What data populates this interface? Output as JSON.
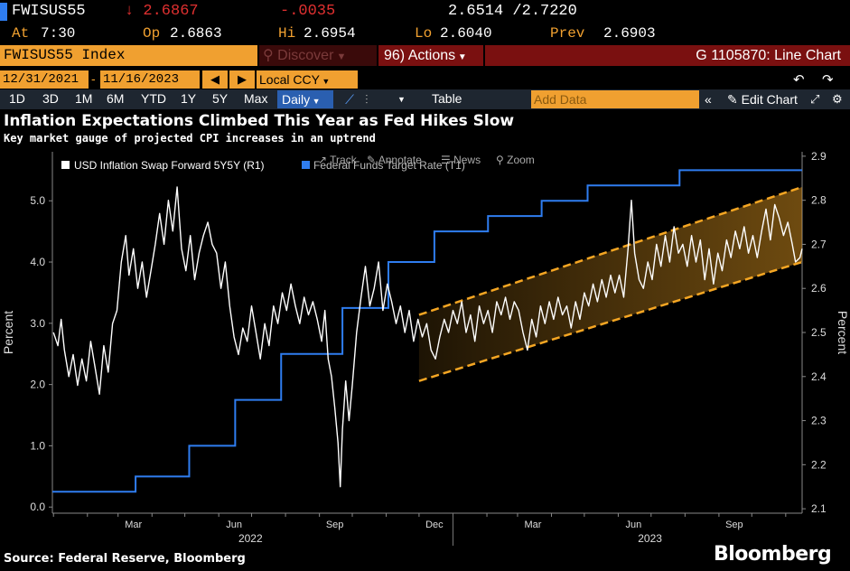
{
  "ticker": {
    "symbol": "FWISUS55",
    "last": "↓ 2.6867",
    "change": "-.0035",
    "bid_ask": "2.6514 /2.7220",
    "at_label": "At",
    "at_value": "7:30",
    "op_label": "Op",
    "op_value": "2.6863",
    "hi_label": "Hi",
    "hi_value": "2.6954",
    "lo_label": "Lo",
    "lo_value": "2.6040",
    "prev_label": "Prev",
    "prev_value": "2.6903"
  },
  "toolbar": {
    "security": "FWISUS55 Index",
    "discover": "Discover",
    "actions_num": "96)",
    "actions": "Actions",
    "function": "G 1105870: Line Chart"
  },
  "dates": {
    "start": "12/31/2021",
    "end": "11/16/2023",
    "currency": "Local CCY"
  },
  "periods": [
    "1D",
    "3D",
    "1M",
    "6M",
    "YTD",
    "1Y",
    "5Y",
    "Max"
  ],
  "frequency": "Daily",
  "table_label": "Table",
  "add_data_placeholder": "Add Data",
  "edit_chart": "Edit Chart",
  "headline": "Inflation Expectations Climbed This Year as Fed Hikes Slow",
  "subheadline": "Key market gauge of projected CPI increases in an uptrend",
  "legend_overlay": {
    "track": "Track",
    "annotate": "Annotate",
    "news": "News",
    "zoom": "Zoom"
  },
  "footer": {
    "source": "Source: Federal Reserve, Bloomberg",
    "brand": "Bloomberg"
  },
  "colors": {
    "inflation": "#ffffff",
    "fed": "#2f7df0",
    "channel": "#f5a623",
    "amber": "#f0a030",
    "down": "#e03030"
  },
  "chart_data": {
    "type": "line",
    "legend": [
      "USD Inflation Swap Forward 5Y5Y (R1)",
      "Federal Funds Target Rate (T1)"
    ],
    "left_axis": {
      "label": "Percent",
      "range": [
        -0.1,
        5.8
      ],
      "ticks": [
        0.0,
        1.0,
        2.0,
        3.0,
        4.0,
        5.0
      ]
    },
    "right_axis": {
      "label": "Percent",
      "range": [
        2.09,
        2.91
      ],
      "ticks": [
        2.1,
        2.2,
        2.3,
        2.4,
        2.5,
        2.6,
        2.7,
        2.8,
        2.9
      ]
    },
    "x_range": [
      "2021-12-31",
      "2023-11-16"
    ],
    "x_ticks": [
      "Mar",
      "Jun",
      "Sep",
      "Dec",
      "Mar",
      "Jun",
      "Sep"
    ],
    "x_tick_dates": [
      "2022-03-15",
      "2022-06-15",
      "2022-09-15",
      "2022-12-15",
      "2023-03-15",
      "2023-06-15",
      "2023-09-15"
    ],
    "x_year_labels": [
      {
        "label": "2022",
        "date": "2022-06-30"
      },
      {
        "label": "2023",
        "date": "2023-06-30"
      }
    ],
    "series": [
      {
        "name": "USD Inflation Swap Forward 5Y5Y (R1)",
        "axis": "right",
        "points": [
          [
            "2022-01-01",
            2.5
          ],
          [
            "2022-01-05",
            2.47
          ],
          [
            "2022-01-08",
            2.53
          ],
          [
            "2022-01-11",
            2.46
          ],
          [
            "2022-01-15",
            2.4
          ],
          [
            "2022-01-19",
            2.45
          ],
          [
            "2022-01-23",
            2.38
          ],
          [
            "2022-01-27",
            2.44
          ],
          [
            "2022-01-31",
            2.39
          ],
          [
            "2022-02-04",
            2.48
          ],
          [
            "2022-02-08",
            2.42
          ],
          [
            "2022-02-12",
            2.36
          ],
          [
            "2022-02-16",
            2.47
          ],
          [
            "2022-02-20",
            2.41
          ],
          [
            "2022-02-24",
            2.52
          ],
          [
            "2022-02-28",
            2.55
          ],
          [
            "2022-03-04",
            2.66
          ],
          [
            "2022-03-08",
            2.72
          ],
          [
            "2022-03-11",
            2.63
          ],
          [
            "2022-03-15",
            2.69
          ],
          [
            "2022-03-19",
            2.6
          ],
          [
            "2022-03-23",
            2.66
          ],
          [
            "2022-03-27",
            2.58
          ],
          [
            "2022-03-31",
            2.64
          ],
          [
            "2022-04-04",
            2.7
          ],
          [
            "2022-04-08",
            2.77
          ],
          [
            "2022-04-12",
            2.7
          ],
          [
            "2022-04-16",
            2.8
          ],
          [
            "2022-04-20",
            2.73
          ],
          [
            "2022-04-24",
            2.83
          ],
          [
            "2022-04-28",
            2.69
          ],
          [
            "2022-05-02",
            2.64
          ],
          [
            "2022-05-06",
            2.72
          ],
          [
            "2022-05-10",
            2.62
          ],
          [
            "2022-05-14",
            2.68
          ],
          [
            "2022-05-18",
            2.72
          ],
          [
            "2022-05-22",
            2.75
          ],
          [
            "2022-05-26",
            2.7
          ],
          [
            "2022-05-30",
            2.68
          ],
          [
            "2022-06-03",
            2.6
          ],
          [
            "2022-06-07",
            2.66
          ],
          [
            "2022-06-11",
            2.56
          ],
          [
            "2022-06-15",
            2.49
          ],
          [
            "2022-06-19",
            2.45
          ],
          [
            "2022-06-23",
            2.51
          ],
          [
            "2022-06-27",
            2.48
          ],
          [
            "2022-07-01",
            2.56
          ],
          [
            "2022-07-05",
            2.5
          ],
          [
            "2022-07-09",
            2.44
          ],
          [
            "2022-07-13",
            2.52
          ],
          [
            "2022-07-17",
            2.47
          ],
          [
            "2022-07-21",
            2.56
          ],
          [
            "2022-07-25",
            2.52
          ],
          [
            "2022-07-29",
            2.59
          ],
          [
            "2022-08-02",
            2.55
          ],
          [
            "2022-08-06",
            2.61
          ],
          [
            "2022-08-10",
            2.56
          ],
          [
            "2022-08-14",
            2.52
          ],
          [
            "2022-08-18",
            2.58
          ],
          [
            "2022-08-22",
            2.54
          ],
          [
            "2022-08-26",
            2.57
          ],
          [
            "2022-08-30",
            2.53
          ],
          [
            "2022-09-03",
            2.48
          ],
          [
            "2022-09-06",
            2.55
          ],
          [
            "2022-09-09",
            2.44
          ],
          [
            "2022-09-12",
            2.4
          ],
          [
            "2022-09-15",
            2.33
          ],
          [
            "2022-09-18",
            2.25
          ],
          [
            "2022-09-20",
            2.15
          ],
          [
            "2022-09-22",
            2.28
          ],
          [
            "2022-09-25",
            2.39
          ],
          [
            "2022-09-28",
            2.3
          ],
          [
            "2022-10-01",
            2.38
          ],
          [
            "2022-10-05",
            2.5
          ],
          [
            "2022-10-09",
            2.58
          ],
          [
            "2022-10-13",
            2.65
          ],
          [
            "2022-10-17",
            2.56
          ],
          [
            "2022-10-21",
            2.6
          ],
          [
            "2022-10-25",
            2.66
          ],
          [
            "2022-10-29",
            2.55
          ],
          [
            "2022-11-02",
            2.61
          ],
          [
            "2022-11-06",
            2.57
          ],
          [
            "2022-11-10",
            2.52
          ],
          [
            "2022-11-14",
            2.56
          ],
          [
            "2022-11-18",
            2.5
          ],
          [
            "2022-11-22",
            2.55
          ],
          [
            "2022-11-26",
            2.48
          ],
          [
            "2022-11-30",
            2.53
          ],
          [
            "2022-12-04",
            2.49
          ],
          [
            "2022-12-08",
            2.52
          ],
          [
            "2022-12-12",
            2.46
          ],
          [
            "2022-12-16",
            2.44
          ],
          [
            "2022-12-20",
            2.49
          ],
          [
            "2022-12-24",
            2.53
          ],
          [
            "2022-12-28",
            2.5
          ],
          [
            "2023-01-01",
            2.55
          ],
          [
            "2023-01-05",
            2.52
          ],
          [
            "2023-01-09",
            2.57
          ],
          [
            "2023-01-13",
            2.5
          ],
          [
            "2023-01-17",
            2.54
          ],
          [
            "2023-01-21",
            2.48
          ],
          [
            "2023-01-25",
            2.56
          ],
          [
            "2023-01-29",
            2.52
          ],
          [
            "2023-02-02",
            2.55
          ],
          [
            "2023-02-06",
            2.5
          ],
          [
            "2023-02-10",
            2.57
          ],
          [
            "2023-02-14",
            2.54
          ],
          [
            "2023-02-18",
            2.58
          ],
          [
            "2023-02-22",
            2.53
          ],
          [
            "2023-02-26",
            2.57
          ],
          [
            "2023-03-02",
            2.55
          ],
          [
            "2023-03-06",
            2.5
          ],
          [
            "2023-03-10",
            2.46
          ],
          [
            "2023-03-14",
            2.53
          ],
          [
            "2023-03-18",
            2.49
          ],
          [
            "2023-03-22",
            2.56
          ],
          [
            "2023-03-26",
            2.52
          ],
          [
            "2023-03-30",
            2.57
          ],
          [
            "2023-04-03",
            2.53
          ],
          [
            "2023-04-07",
            2.58
          ],
          [
            "2023-04-11",
            2.54
          ],
          [
            "2023-04-15",
            2.56
          ],
          [
            "2023-04-19",
            2.51
          ],
          [
            "2023-04-23",
            2.57
          ],
          [
            "2023-04-27",
            2.53
          ],
          [
            "2023-05-01",
            2.59
          ],
          [
            "2023-05-05",
            2.56
          ],
          [
            "2023-05-09",
            2.61
          ],
          [
            "2023-05-13",
            2.57
          ],
          [
            "2023-05-17",
            2.62
          ],
          [
            "2023-05-21",
            2.58
          ],
          [
            "2023-05-25",
            2.63
          ],
          [
            "2023-05-29",
            2.59
          ],
          [
            "2023-06-02",
            2.63
          ],
          [
            "2023-06-06",
            2.58
          ],
          [
            "2023-06-10",
            2.69
          ],
          [
            "2023-06-13",
            2.8
          ],
          [
            "2023-06-16",
            2.68
          ],
          [
            "2023-06-20",
            2.62
          ],
          [
            "2023-06-24",
            2.6
          ],
          [
            "2023-06-28",
            2.66
          ],
          [
            "2023-07-02",
            2.62
          ],
          [
            "2023-07-06",
            2.7
          ],
          [
            "2023-07-10",
            2.65
          ],
          [
            "2023-07-14",
            2.72
          ],
          [
            "2023-07-18",
            2.66
          ],
          [
            "2023-07-22",
            2.74
          ],
          [
            "2023-07-26",
            2.68
          ],
          [
            "2023-07-30",
            2.7
          ],
          [
            "2023-08-03",
            2.65
          ],
          [
            "2023-08-07",
            2.72
          ],
          [
            "2023-08-11",
            2.66
          ],
          [
            "2023-08-15",
            2.71
          ],
          [
            "2023-08-19",
            2.62
          ],
          [
            "2023-08-23",
            2.69
          ],
          [
            "2023-08-27",
            2.61
          ],
          [
            "2023-08-31",
            2.68
          ],
          [
            "2023-09-04",
            2.64
          ],
          [
            "2023-09-08",
            2.71
          ],
          [
            "2023-09-12",
            2.67
          ],
          [
            "2023-09-16",
            2.73
          ],
          [
            "2023-09-20",
            2.69
          ],
          [
            "2023-09-24",
            2.74
          ],
          [
            "2023-09-28",
            2.68
          ],
          [
            "2023-10-02",
            2.72
          ],
          [
            "2023-10-06",
            2.67
          ],
          [
            "2023-10-10",
            2.73
          ],
          [
            "2023-10-14",
            2.78
          ],
          [
            "2023-10-18",
            2.71
          ],
          [
            "2023-10-22",
            2.79
          ],
          [
            "2023-10-26",
            2.76
          ],
          [
            "2023-10-30",
            2.72
          ],
          [
            "2023-11-03",
            2.75
          ],
          [
            "2023-11-07",
            2.7
          ],
          [
            "2023-11-10",
            2.66
          ],
          [
            "2023-11-14",
            2.67
          ],
          [
            "2023-11-16",
            2.69
          ]
        ]
      },
      {
        "name": "Federal Funds Target Rate (T1)",
        "axis": "left",
        "step_points": [
          [
            "2021-12-31",
            0.25
          ],
          [
            "2022-03-17",
            0.5
          ],
          [
            "2022-05-05",
            1.0
          ],
          [
            "2022-06-16",
            1.75
          ],
          [
            "2022-07-28",
            2.5
          ],
          [
            "2022-09-22",
            3.25
          ],
          [
            "2022-11-03",
            4.0
          ],
          [
            "2022-12-15",
            4.5
          ],
          [
            "2023-02-02",
            4.75
          ],
          [
            "2023-03-23",
            5.0
          ],
          [
            "2023-05-04",
            5.25
          ],
          [
            "2023-07-27",
            5.5
          ],
          [
            "2023-11-16",
            5.5
          ]
        ]
      }
    ],
    "annotations": [
      {
        "type": "trend_channel",
        "axis": "right",
        "upper": [
          [
            "2022-12-01",
            2.54
          ],
          [
            "2023-11-16",
            2.83
          ]
        ],
        "lower": [
          [
            "2022-12-01",
            2.39
          ],
          [
            "2023-11-16",
            2.66
          ]
        ]
      }
    ]
  }
}
